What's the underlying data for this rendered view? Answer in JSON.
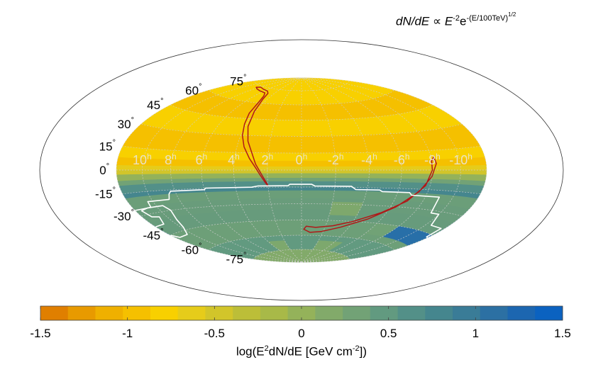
{
  "title_text": {
    "lhs": "dN/dE",
    "prop": "∝",
    "E": "E",
    "exp1": "-2",
    "e": "e",
    "exp2": "-(E/100TeV)",
    "exp3": "1/2"
  },
  "chart_data": {
    "type": "heatmap",
    "projection": "hammer-aitoff",
    "grid": true,
    "ra_labels": [
      "10h",
      "8h",
      "6h",
      "4h",
      "2h",
      "0h",
      "-2h",
      "-4h",
      "-6h",
      "-8h",
      "-10h"
    ],
    "ra_values_h": [
      10,
      8,
      6,
      4,
      2,
      0,
      -2,
      -4,
      -6,
      -8,
      -10
    ],
    "dec_labels": [
      "75°",
      "60°",
      "45°",
      "30°",
      "15°",
      "0°",
      "-15°",
      "-30°",
      "-45°",
      "-60°",
      "-75°"
    ],
    "dec_values_deg": [
      75,
      60,
      45,
      30,
      15,
      0,
      -15,
      -30,
      -45,
      -60,
      -75
    ],
    "colorbar": {
      "label_prefix": "log(E",
      "label_sup1": "2",
      "label_mid": "dN/dE [GeV cm",
      "label_sup2": "-2",
      "label_suffix": "])",
      "range": [
        -1.5,
        1.5
      ],
      "ticks": [
        -1.5,
        -1,
        -0.5,
        0,
        0.5,
        1,
        1.5
      ],
      "tick_labels": [
        "-1.5",
        "-1",
        "-0.5",
        "0",
        "0.5",
        "1",
        "1.5"
      ],
      "colors": [
        "#e07f00",
        "#e89a00",
        "#efb000",
        "#f5c000",
        "#f8d000",
        "#e6cc1a",
        "#d2c52a",
        "#bcbe38",
        "#a8b948",
        "#94b25a",
        "#82aa6a",
        "#72a276",
        "#629a80",
        "#539088",
        "#45868e",
        "#3a7c97",
        "#2c70a3",
        "#1c66b0",
        "#0b62c0"
      ]
    },
    "bands_dec": [
      {
        "dec": [
          75,
          90
        ],
        "value": -0.8
      },
      {
        "dec": [
          60,
          75
        ],
        "value": -0.85
      },
      {
        "dec": [
          45,
          60
        ],
        "value": -0.95
      },
      {
        "dec": [
          30,
          45
        ],
        "value": -0.85
      },
      {
        "dec": [
          15,
          30
        ],
        "value": -0.95
      },
      {
        "dec": [
          8,
          15
        ],
        "value": -0.85
      },
      {
        "dec": [
          3,
          8
        ],
        "value": -1.0
      },
      {
        "dec": [
          0,
          3
        ],
        "value": -0.7
      },
      {
        "dec": [
          -3,
          0
        ],
        "value": -0.4
      },
      {
        "dec": [
          -7,
          -3
        ],
        "value": 0.05
      },
      {
        "dec": [
          -10,
          -7
        ],
        "value": 0.35
      },
      {
        "dec": [
          -15,
          -10
        ],
        "value": 0.65
      },
      {
        "dec": [
          -25,
          -15
        ],
        "value": 0.8
      },
      {
        "dec": [
          -35,
          -25
        ],
        "value": 0.95
      },
      {
        "dec": [
          -45,
          -35
        ],
        "value": 1.1
      },
      {
        "dec": [
          -60,
          -45
        ],
        "value": 0.7
      },
      {
        "dec": [
          -75,
          -60
        ],
        "value": 0.4
      },
      {
        "dec": [
          -90,
          -75
        ],
        "value": 0.2
      }
    ],
    "patches": [
      {
        "ra_h": [
          -12,
          12
        ],
        "dec": [
          -60,
          -18
        ],
        "value": 0.35
      },
      {
        "ra_h": [
          -4,
          -2
        ],
        "dec": [
          -40,
          -28
        ],
        "value": 0.2
      },
      {
        "ra_h": [
          -8,
          -6
        ],
        "dec": [
          -55,
          -45
        ],
        "value": 0.3
      },
      {
        "ra_h": [
          -12,
          -8
        ],
        "dec": [
          -55,
          -45
        ],
        "value": 1.2
      },
      {
        "ra_h": [
          4,
          2
        ],
        "dec": [
          -75,
          -65
        ],
        "value": 0.2
      },
      {
        "ra_h": [
          -2,
          -5
        ],
        "dec": [
          -75,
          -65
        ],
        "value": 0.15
      }
    ],
    "contours": [
      {
        "name": "north-red",
        "color": "#b01818",
        "closed": true,
        "points": [
          [
            8.4,
            73
          ],
          [
            7.6,
            72
          ],
          [
            6.6,
            71
          ],
          [
            5.4,
            70
          ],
          [
            4.9,
            67
          ],
          [
            4.6,
            62
          ],
          [
            4.4,
            50
          ],
          [
            4.15,
            40
          ],
          [
            3.9,
            30
          ],
          [
            3.55,
            20
          ],
          [
            3.1,
            10
          ],
          [
            2.7,
            2
          ],
          [
            2.4,
            -5
          ],
          [
            2.15,
            -11
          ],
          [
            2.0,
            -14
          ],
          [
            2.05,
            -12
          ],
          [
            2.3,
            -5
          ],
          [
            2.7,
            5
          ],
          [
            3.0,
            15
          ],
          [
            3.4,
            25
          ],
          [
            3.8,
            38
          ],
          [
            4.1,
            52
          ],
          [
            4.5,
            64
          ],
          [
            4.9,
            70
          ],
          [
            5.5,
            72
          ],
          [
            6.7,
            73
          ],
          [
            7.8,
            74
          ],
          [
            8.4,
            73
          ]
        ]
      },
      {
        "name": "south-red",
        "color": "#b01818",
        "closed": true,
        "points": [
          [
            -8.2,
            10
          ],
          [
            -8.3,
            5
          ],
          [
            -8.0,
            -5
          ],
          [
            -7.4,
            -17
          ],
          [
            -6.4,
            -30
          ],
          [
            -5.0,
            -42
          ],
          [
            -3.3,
            -51
          ],
          [
            -1.8,
            -56
          ],
          [
            -0.8,
            -57
          ],
          [
            -0.2,
            -54
          ],
          [
            -0.4,
            -51
          ],
          [
            -1.2,
            -52
          ],
          [
            -2.6,
            -50
          ],
          [
            -4.0,
            -45
          ],
          [
            -5.6,
            -36
          ],
          [
            -6.9,
            -25
          ],
          [
            -7.7,
            -12
          ],
          [
            -8.0,
            0
          ],
          [
            -8.0,
            7
          ],
          [
            -8.2,
            10
          ]
        ]
      },
      {
        "name": "white-region",
        "color": "#ffffff",
        "closed": true,
        "points": [
          [
            12,
            -26
          ],
          [
            10.5,
            -26
          ],
          [
            10.4,
            -22
          ],
          [
            8.7,
            -22
          ],
          [
            8.5,
            -18
          ],
          [
            8.3,
            -16
          ],
          [
            6,
            -16
          ],
          [
            5.9,
            -14.8
          ],
          [
            3,
            -14.8
          ],
          [
            2.6,
            -13.8
          ],
          [
            0.8,
            -13.8
          ],
          [
            0.7,
            -12.5
          ],
          [
            -0.6,
            -12.5
          ],
          [
            -0.8,
            -14
          ],
          [
            -3,
            -14
          ],
          [
            -3.3,
            -16.8
          ],
          [
            -4.8,
            -16.8
          ],
          [
            -5,
            -18
          ],
          [
            -6.8,
            -18
          ],
          [
            -7,
            -20
          ],
          [
            -9,
            -20
          ],
          [
            -9.3,
            -32
          ],
          [
            -10,
            -32
          ],
          [
            -10.5,
            -40
          ],
          [
            -11.7,
            -40
          ],
          [
            -11.8,
            -47
          ],
          [
            -12,
            -47
          ]
        ]
      },
      {
        "name": "white-left",
        "color": "#ffffff",
        "closed": true,
        "points": [
          [
            12,
            -38
          ],
          [
            11,
            -38
          ],
          [
            10.6,
            -33
          ],
          [
            11.2,
            -32
          ],
          [
            11.5,
            -27
          ],
          [
            10.8,
            -26
          ],
          [
            9.5,
            -26
          ],
          [
            9.2,
            -30
          ],
          [
            9.5,
            -37
          ],
          [
            9.8,
            -43
          ],
          [
            10.5,
            -48
          ],
          [
            11.6,
            -48
          ],
          [
            12,
            -45
          ]
        ]
      }
    ]
  }
}
